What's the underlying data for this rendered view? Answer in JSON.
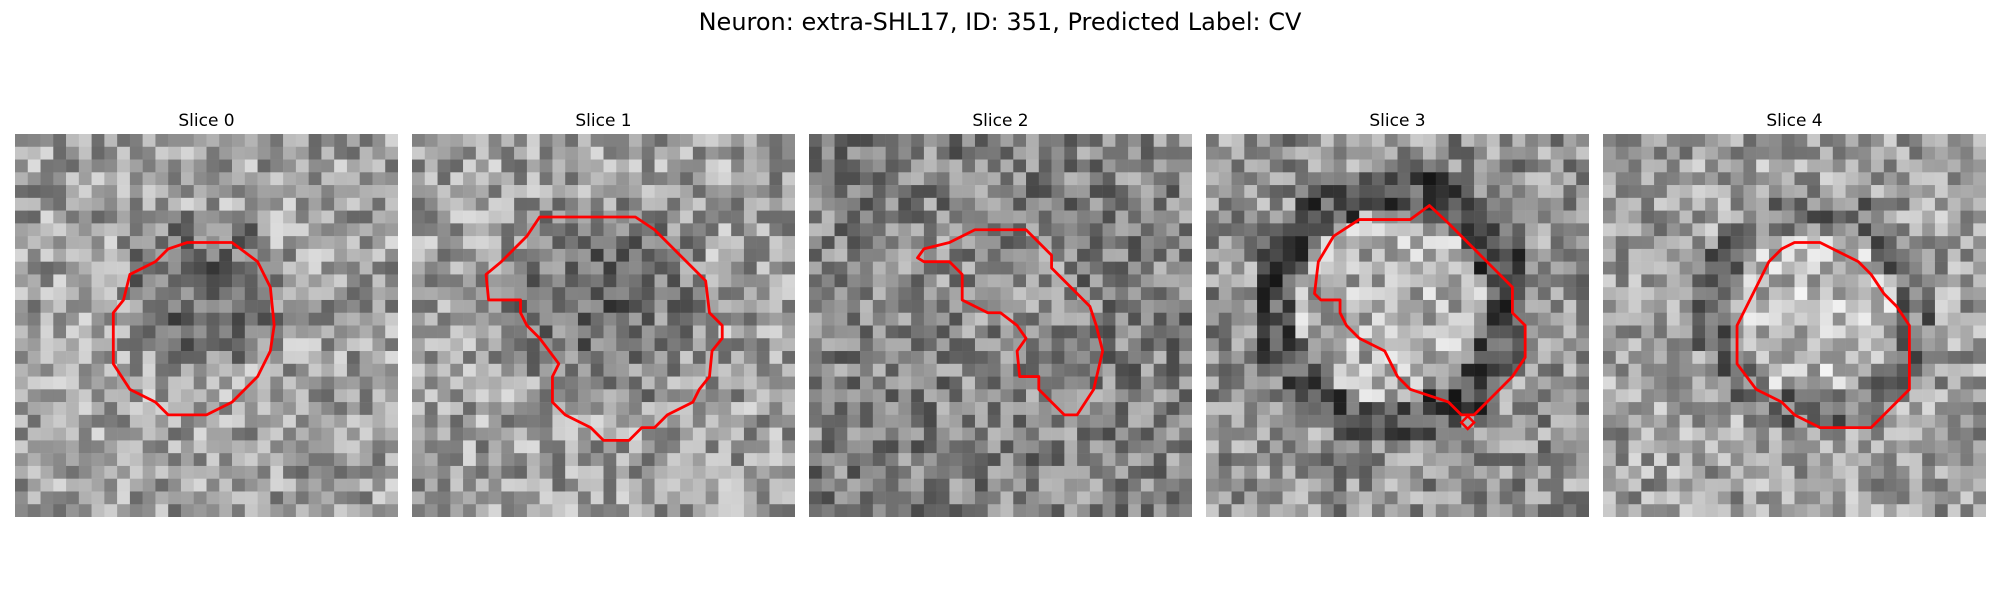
{
  "figure": {
    "title": "Neuron: extra-SHL17, ID: 351, Predicted Label: CV",
    "contour_color": "#ff0000"
  },
  "panels": [
    {
      "title": "Slice 0"
    },
    {
      "title": "Slice 1"
    },
    {
      "title": "Slice 2"
    },
    {
      "title": "Slice 3"
    },
    {
      "title": "Slice 4"
    }
  ]
}
